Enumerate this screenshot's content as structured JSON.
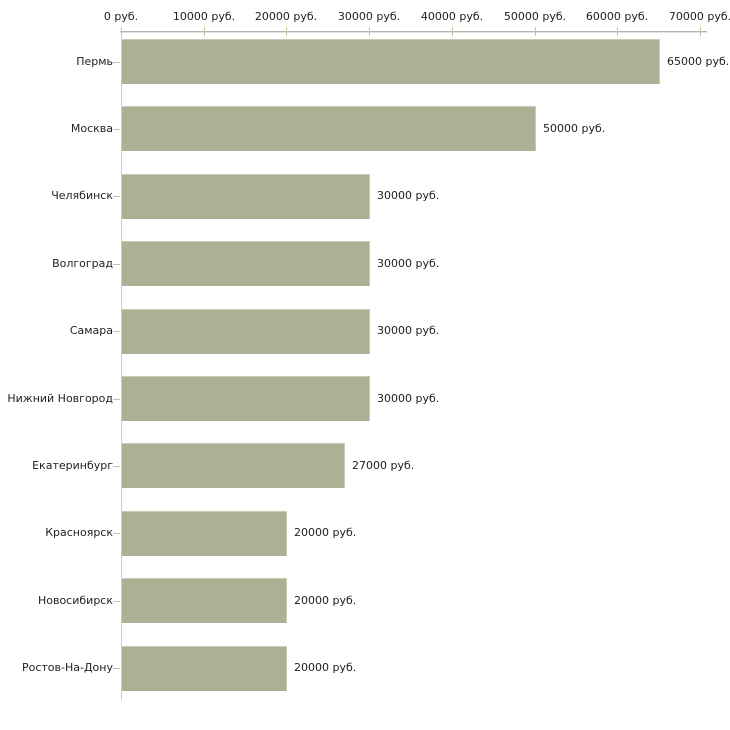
{
  "chart_data": {
    "type": "bar",
    "orientation": "horizontal",
    "title": "",
    "xlabel": "",
    "ylabel": "",
    "unit": "руб.",
    "categories": [
      "Пермь",
      "Москва",
      "Челябинск",
      "Волгоград",
      "Самара",
      "Нижний Новгород",
      "Екатеринбург",
      "Красноярск",
      "Новосибирск",
      "Ростов-На-Дону"
    ],
    "values": [
      65000,
      50000,
      30000,
      30000,
      30000,
      30000,
      27000,
      20000,
      20000,
      20000
    ],
    "value_labels": [
      "65000 руб.",
      "50000 руб.",
      "30000 руб.",
      "30000 руб.",
      "30000 руб.",
      "30000 руб.",
      "27000 руб.",
      "20000 руб.",
      "20000 руб.",
      "20000 руб."
    ],
    "x_tick_values": [
      0,
      10000,
      20000,
      30000,
      40000,
      50000,
      60000,
      70000
    ],
    "x_tick_labels": [
      "0 руб.",
      "10000 руб.",
      "20000 руб.",
      "30000 руб.",
      "40000 руб.",
      "50000 руб.",
      "60000 руб.",
      "70000 руб."
    ],
    "xlim": [
      0,
      70000
    ],
    "grid": "off",
    "legend": "none",
    "colors": {
      "background": "#ffffff",
      "bar_fill": "#acb196",
      "bar_edge": "#c8ccb5",
      "axis_line": "#b3b3b3",
      "axis_line_light": "#e2e2e2",
      "vertical_axis_line": "#cdcdcd",
      "tick": "#c9c4a0",
      "text": "#1f1f1f"
    }
  }
}
